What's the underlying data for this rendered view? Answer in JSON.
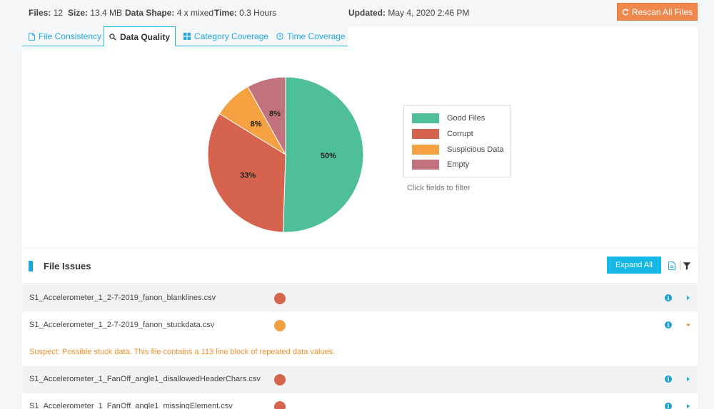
{
  "summary": {
    "files_label": "Files:",
    "files_value": "12",
    "size_label": "Size:",
    "size_value": "13.4 MB",
    "shape_label": "Data Shape:",
    "shape_value": "4 x mixed",
    "time_label": "Time:",
    "time_value": "0.3 Hours",
    "updated_label": "Updated:",
    "updated_value": "May 4, 2020 2:46 PM"
  },
  "rescan_label": "Rescan All Files",
  "tabs": [
    {
      "label": "File Consistency",
      "icon": "file-icon",
      "active": false
    },
    {
      "label": "Data Quality",
      "icon": "search-icon",
      "active": true
    },
    {
      "label": "Category Coverage",
      "icon": "grid-icon",
      "active": false
    },
    {
      "label": "Time Coverage",
      "icon": "clock-icon",
      "active": false
    }
  ],
  "chart_data": {
    "type": "pie",
    "categories": [
      "Good Files",
      "Corrupt",
      "Suspicious Data",
      "Empty"
    ],
    "values": [
      50,
      33,
      8,
      8
    ],
    "labels": [
      "50%",
      "33%",
      "8%",
      "8%"
    ],
    "colors": [
      "#4fbf98",
      "#d5634e",
      "#f5a142",
      "#c2727c"
    ],
    "legend_position": "right"
  },
  "legend_hint": "Click fields to filter",
  "issues": {
    "title": "File Issues",
    "expand_label": "Expand All",
    "rows": [
      {
        "name": "S1_Accelerometer_1_2-7-2019_fanon_blanklines.csv",
        "status_color": "#d5634e",
        "expanded": false
      },
      {
        "name": "S1_Accelerometer_1_2-7-2019_fanon_stuckdata.csv",
        "status_color": "#f5a142",
        "expanded": true
      },
      {
        "name": "S1_Accelerometer_1_FanOff_angle1_disallowedHeaderChars.csv",
        "status_color": "#d5634e",
        "expanded": false
      },
      {
        "name": "S1_Accelerometer_1_FanOff_angle1_missingElement.csv",
        "status_color": "#d5634e",
        "expanded": false
      }
    ],
    "detail": "Suspect: Possible stuck data. This file contains a 113 line block of repeated data values."
  },
  "colors": {
    "accent": "#16b8e7",
    "rescan": "#f0884e",
    "warning_text": "#f0902e"
  }
}
